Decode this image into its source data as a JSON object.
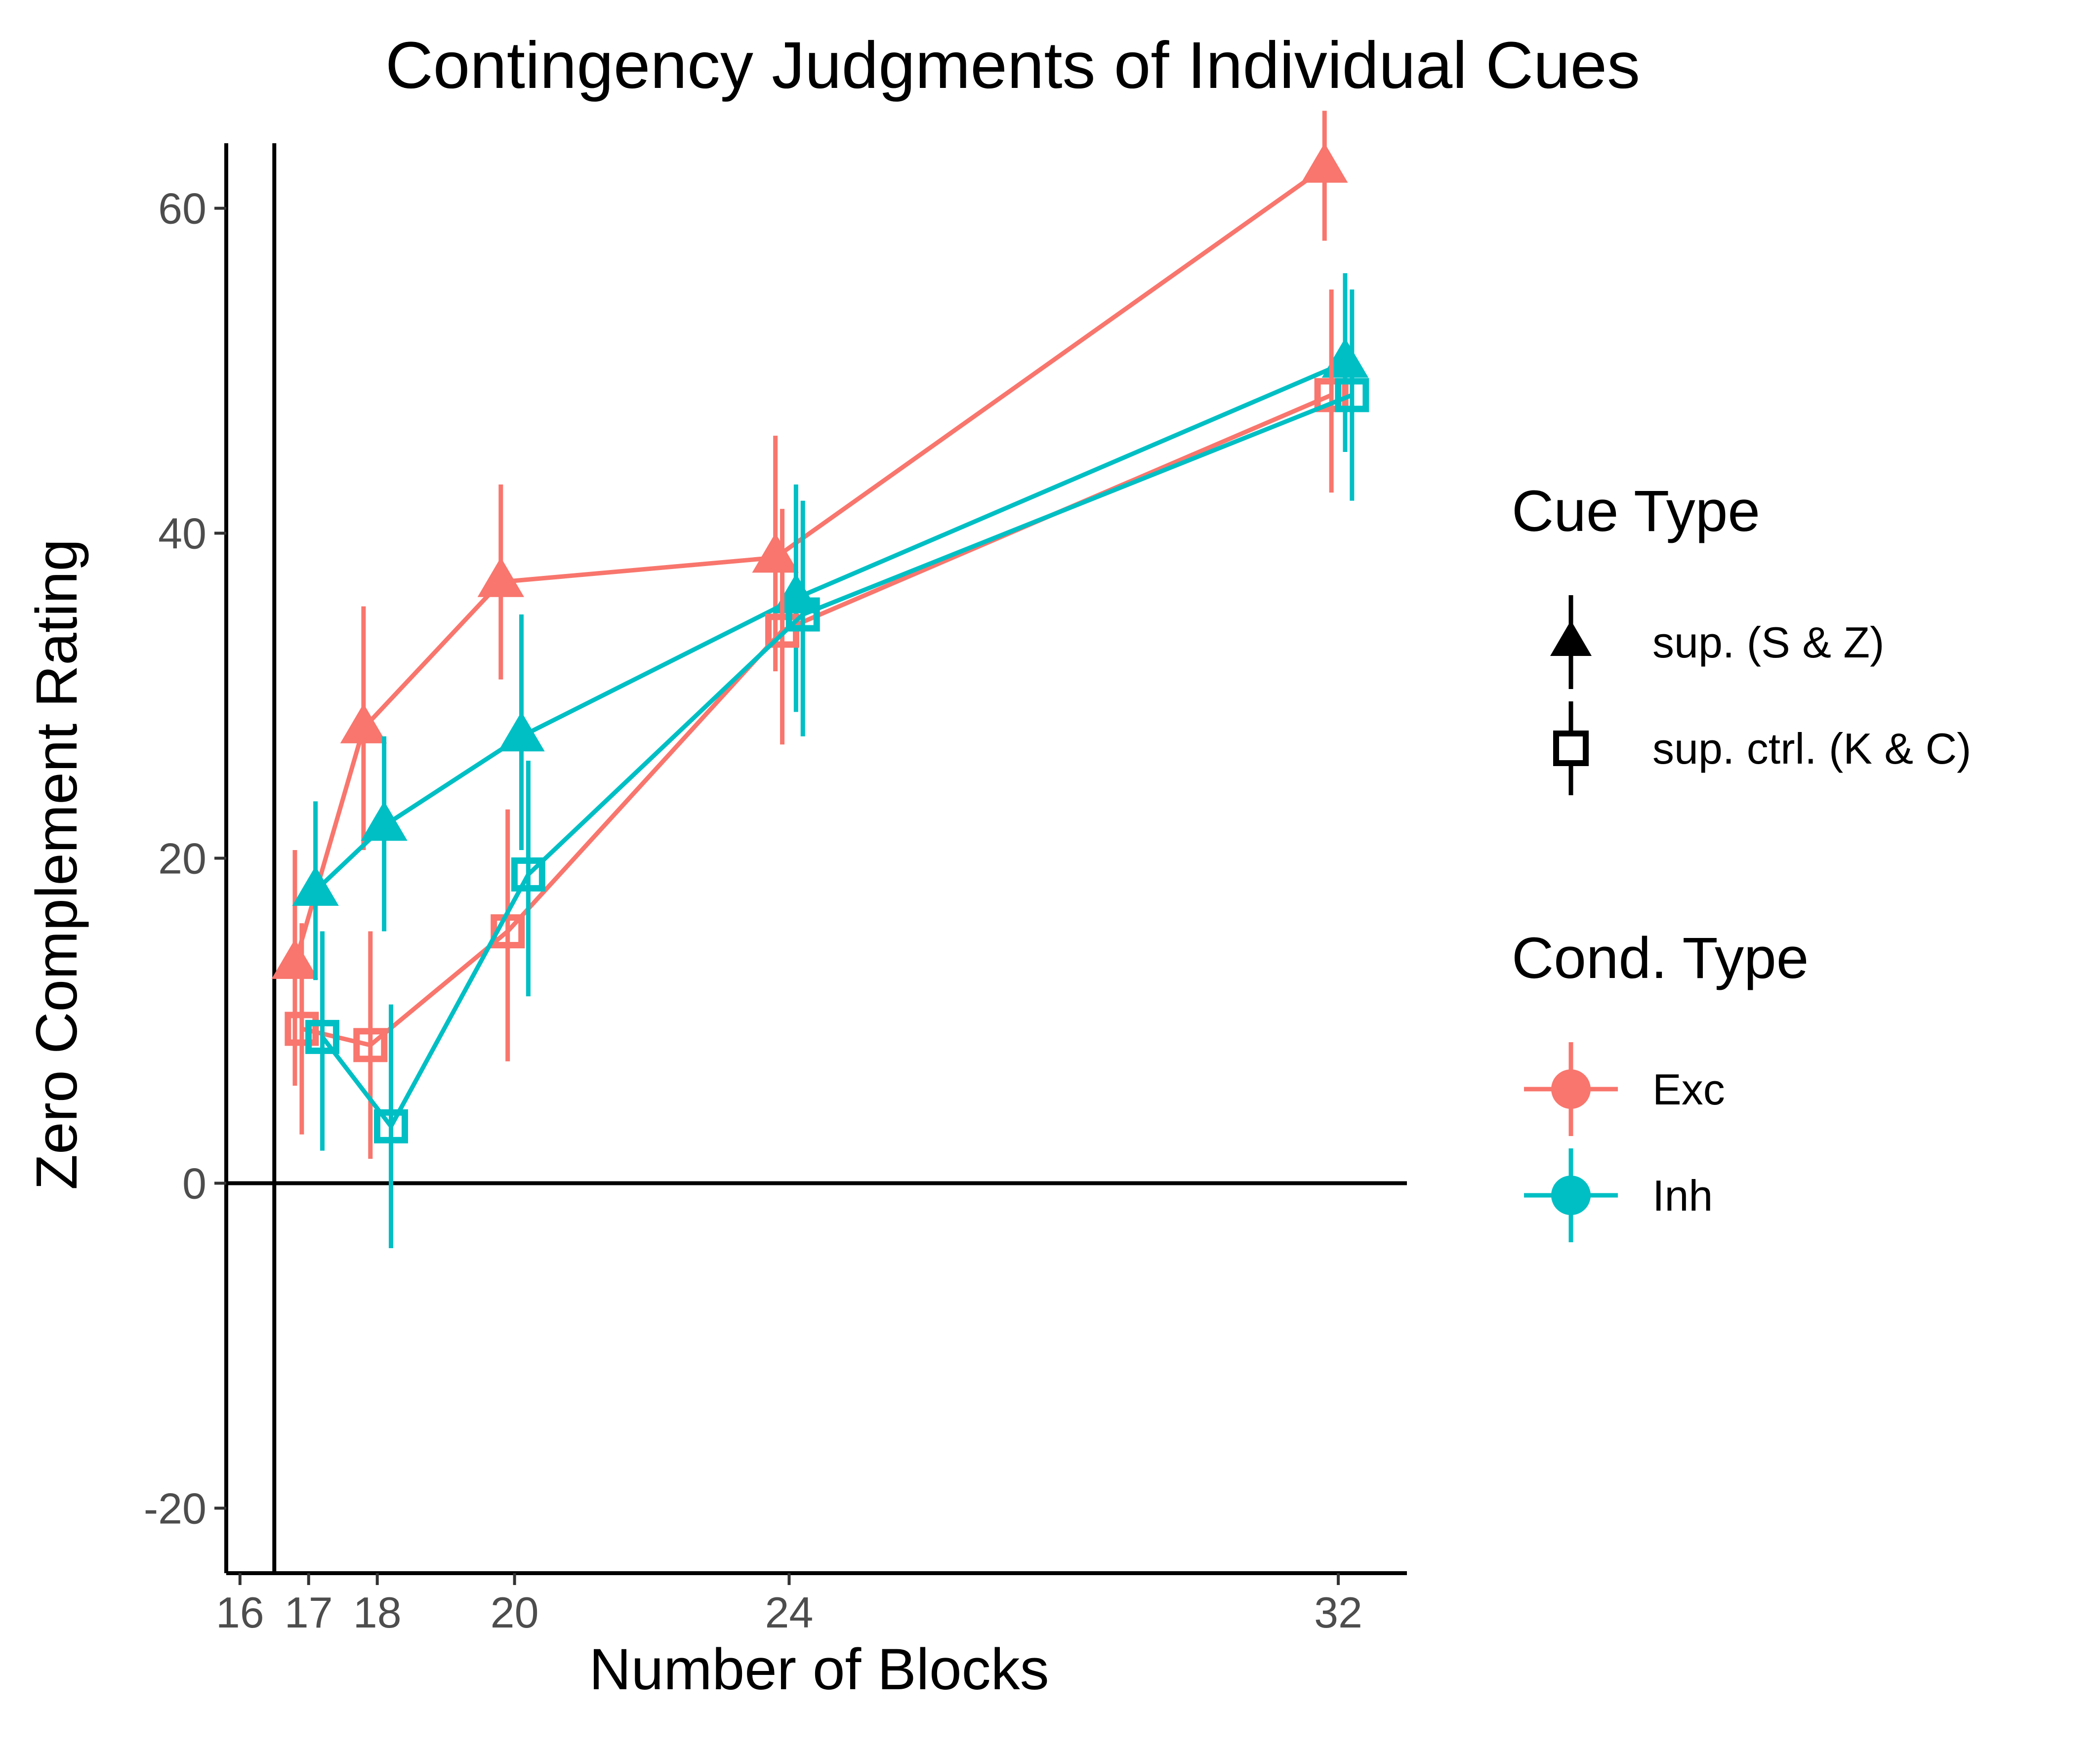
{
  "chart_data": {
    "type": "line",
    "title": "Contingency Judgments of Individual Cues",
    "xlabel": "Number of Blocks",
    "ylabel": "Zero Complement Rating",
    "x_ticks": [
      16,
      17,
      18,
      20,
      24,
      32
    ],
    "y_ticks": [
      -20,
      0,
      20,
      40,
      60
    ],
    "xlim": [
      15.8,
      33
    ],
    "ylim": [
      -24,
      64
    ],
    "reference_lines": {
      "x": 16.5,
      "y": 0
    },
    "grid": false,
    "legend_placement": "right",
    "legends": [
      {
        "title": "Cue Type",
        "entries": [
          {
            "label": "sup. (S & Z)",
            "shape": "triangle"
          },
          {
            "label": "sup. ctrl. (K & C)",
            "shape": "square-open"
          }
        ]
      },
      {
        "title": "Cond. Type",
        "entries": [
          {
            "label": "Exc",
            "color": "#F8766D"
          },
          {
            "label": "Inh",
            "color": "#00BFC4"
          }
        ]
      }
    ],
    "series": [
      {
        "cond": "Exc",
        "cue": "sup. (S & Z)",
        "color": "#F8766D",
        "shape": "triangle",
        "dodge": -0.2,
        "points": [
          {
            "x": 17,
            "y": 13.5,
            "lo": 6,
            "hi": 20.5
          },
          {
            "x": 18,
            "y": 28,
            "lo": 20.5,
            "hi": 35.5
          },
          {
            "x": 20,
            "y": 37,
            "lo": 31,
            "hi": 43
          },
          {
            "x": 24,
            "y": 38.5,
            "lo": 31.5,
            "hi": 46
          },
          {
            "x": 32,
            "y": 62.5,
            "lo": 58,
            "hi": 66
          }
        ]
      },
      {
        "cond": "Inh",
        "cue": "sup. (S & Z)",
        "color": "#00BFC4",
        "shape": "triangle",
        "dodge": 0.1,
        "points": [
          {
            "x": 17,
            "y": 18,
            "lo": 12.5,
            "hi": 23.5
          },
          {
            "x": 18,
            "y": 22,
            "lo": 15.5,
            "hi": 27.5
          },
          {
            "x": 20,
            "y": 27.5,
            "lo": 20.5,
            "hi": 35
          },
          {
            "x": 24,
            "y": 36,
            "lo": 29,
            "hi": 43
          },
          {
            "x": 32,
            "y": 50.5,
            "lo": 45,
            "hi": 56
          }
        ]
      },
      {
        "cond": "Exc",
        "cue": "sup. ctrl. (K & C)",
        "color": "#F8766D",
        "shape": "square-open",
        "dodge": -0.1,
        "points": [
          {
            "x": 17,
            "y": 9.5,
            "lo": 3,
            "hi": 16
          },
          {
            "x": 18,
            "y": 8.5,
            "lo": 1.5,
            "hi": 15.5
          },
          {
            "x": 20,
            "y": 15.5,
            "lo": 7.5,
            "hi": 23
          },
          {
            "x": 24,
            "y": 34,
            "lo": 27,
            "hi": 41.5
          },
          {
            "x": 32,
            "y": 48.5,
            "lo": 42.5,
            "hi": 55
          }
        ]
      },
      {
        "cond": "Inh",
        "cue": "sup. ctrl. (K & C)",
        "color": "#00BFC4",
        "shape": "square-open",
        "dodge": 0.2,
        "points": [
          {
            "x": 17,
            "y": 9,
            "lo": 2,
            "hi": 15.5
          },
          {
            "x": 18,
            "y": 3.5,
            "lo": -4,
            "hi": 11
          },
          {
            "x": 20,
            "y": 19,
            "lo": 11.5,
            "hi": 26
          },
          {
            "x": 24,
            "y": 35,
            "lo": 27.5,
            "hi": 42
          },
          {
            "x": 32,
            "y": 48.5,
            "lo": 42,
            "hi": 55
          }
        ]
      }
    ]
  }
}
